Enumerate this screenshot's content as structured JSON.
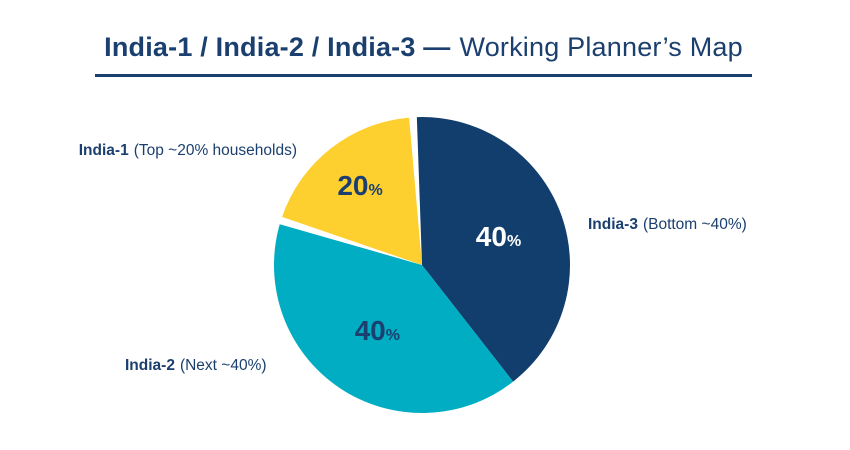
{
  "page": {
    "background": "#ffffff",
    "text_navy": "#1b3f6e"
  },
  "title": {
    "bold": "India-1 / India-2 / India-3 —",
    "regular": "Working Planner’s Map",
    "color": "#1b3f6e",
    "underline_color": "#1b3f6e"
  },
  "chart_data": {
    "type": "pie",
    "title": "India-1 / India-2 / India-3 — Working Planner’s Map",
    "unit": "%",
    "direction": "clockwise",
    "start_angle_deg": -2,
    "legend_position": "outside-callouts",
    "slices": [
      {
        "name": "India-3",
        "description": "(Bottom ~40%)",
        "value": 40,
        "color": "#113e6d",
        "label_color": "#ffffff",
        "separated": false
      },
      {
        "name": "India-2",
        "description": "(Next ~40%)",
        "value": 40,
        "color": "#00adc2",
        "label_color": "#1b3f6e",
        "separated": false
      },
      {
        "name": "India-1",
        "description": "(Top ~20% households)",
        "value": 20,
        "color": "#fdd02f",
        "label_color": "#1b3f6e",
        "separated": true
      }
    ]
  }
}
